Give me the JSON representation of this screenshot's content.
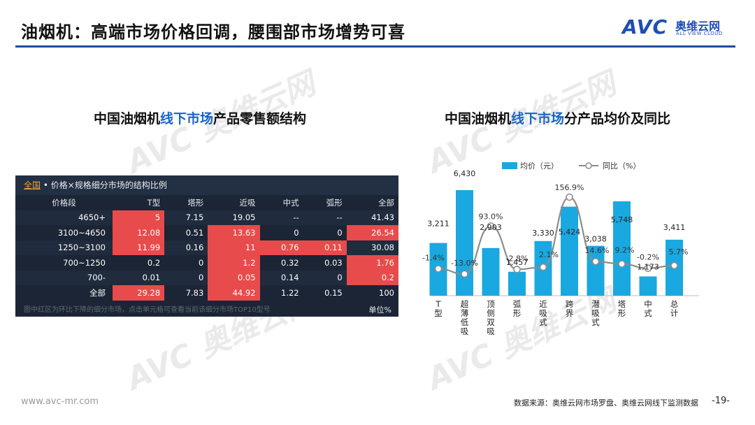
{
  "header": {
    "title": "油烟机：高端市场价格回调，腰围部市场增势可喜",
    "logo_main": "AVC",
    "logo_cn": "奥维云网",
    "logo_en": "ALL VIEW CLOUD"
  },
  "watermark": {
    "text": "AVC 奥维云网",
    "sub": "ALL VIEW CLOUD"
  },
  "left": {
    "title_pre": "中国油烟机",
    "title_hl": "线下市场",
    "title_post": "产品零售额结构",
    "table": {
      "header_link": "全国",
      "header_text": " • 价格×规格细分市场的结构比例",
      "columns": [
        "价格段",
        "T型",
        "塔形",
        "近吸",
        "中式",
        "弧形",
        "全部"
      ],
      "rows": [
        [
          "4650+",
          "5",
          "7.15",
          "19.05",
          "--",
          "--",
          "41.43"
        ],
        [
          "3100~4650",
          "12.08",
          "0.51",
          "13.63",
          "0",
          "0",
          "26.54"
        ],
        [
          "1250~3100",
          "11.99",
          "0.16",
          "11",
          "0.76",
          "0.11",
          "30.08"
        ],
        [
          "700~1250",
          "0.2",
          "0",
          "1.2",
          "0.32",
          "0.03",
          "1.76"
        ],
        [
          "700-",
          "0.01",
          "0",
          "0.05",
          "0.14",
          "0",
          "0.2"
        ],
        [
          "全部",
          "29.28",
          "7.83",
          "44.92",
          "1.22",
          "0.15",
          "100"
        ]
      ],
      "highlight": [
        [
          false,
          true,
          false,
          false,
          false,
          false,
          false
        ],
        [
          false,
          true,
          false,
          true,
          false,
          false,
          true
        ],
        [
          false,
          true,
          false,
          true,
          true,
          true,
          false
        ],
        [
          false,
          false,
          false,
          true,
          false,
          false,
          true
        ],
        [
          false,
          false,
          false,
          true,
          false,
          false,
          true
        ],
        [
          false,
          true,
          false,
          true,
          false,
          false,
          false
        ]
      ],
      "highlight_color": "#e84b4b",
      "footnote": "图中红区为环比下降的细分市场，点击单元格可查看当前该细分市场TOP10型号",
      "unit": "单位%"
    }
  },
  "right": {
    "title_pre": "中国油烟机",
    "title_hl": "线下市场",
    "title_post": "分产品均价及同比"
  },
  "chart_data": {
    "type": "bar",
    "categories": [
      "T型",
      "超薄低吸",
      "顶侧双吸",
      "弧形",
      "近吸式",
      "跨界",
      "潜吸式",
      "塔形",
      "中式",
      "总计"
    ],
    "series": [
      {
        "name": "均价（元）",
        "type": "bar",
        "values": [
          3211,
          6430,
          2903,
          1457,
          3330,
          5424,
          3038,
          5748,
          1173,
          3411
        ],
        "labels": [
          "3,211",
          "6,430",
          "2,903",
          "1,457",
          "3,330",
          "5,424",
          "3,038",
          "5,748",
          "1,173",
          "3,411"
        ],
        "color": "#1aa8e0"
      },
      {
        "name": "同比（%）",
        "type": "line",
        "values": [
          -1.4,
          -13.0,
          93.0,
          -2.8,
          2.1,
          156.9,
          14.6,
          9.2,
          -0.2,
          5.7
        ],
        "labels": [
          "-1.4%",
          "-13.0%",
          "93.0%",
          "-2.8%",
          "2.1%",
          "156.9%",
          "14.6%",
          "9.2%",
          "-0.2%",
          "5.7%"
        ],
        "color": "#8c8c8c"
      }
    ],
    "legend_position": "top",
    "grid": false,
    "title": ""
  },
  "footer": {
    "website": "www.avc-mr.com",
    "source": "数据来源：奥维云网市场罗盘、奥维云网线下监测数据",
    "page": "-19-"
  }
}
